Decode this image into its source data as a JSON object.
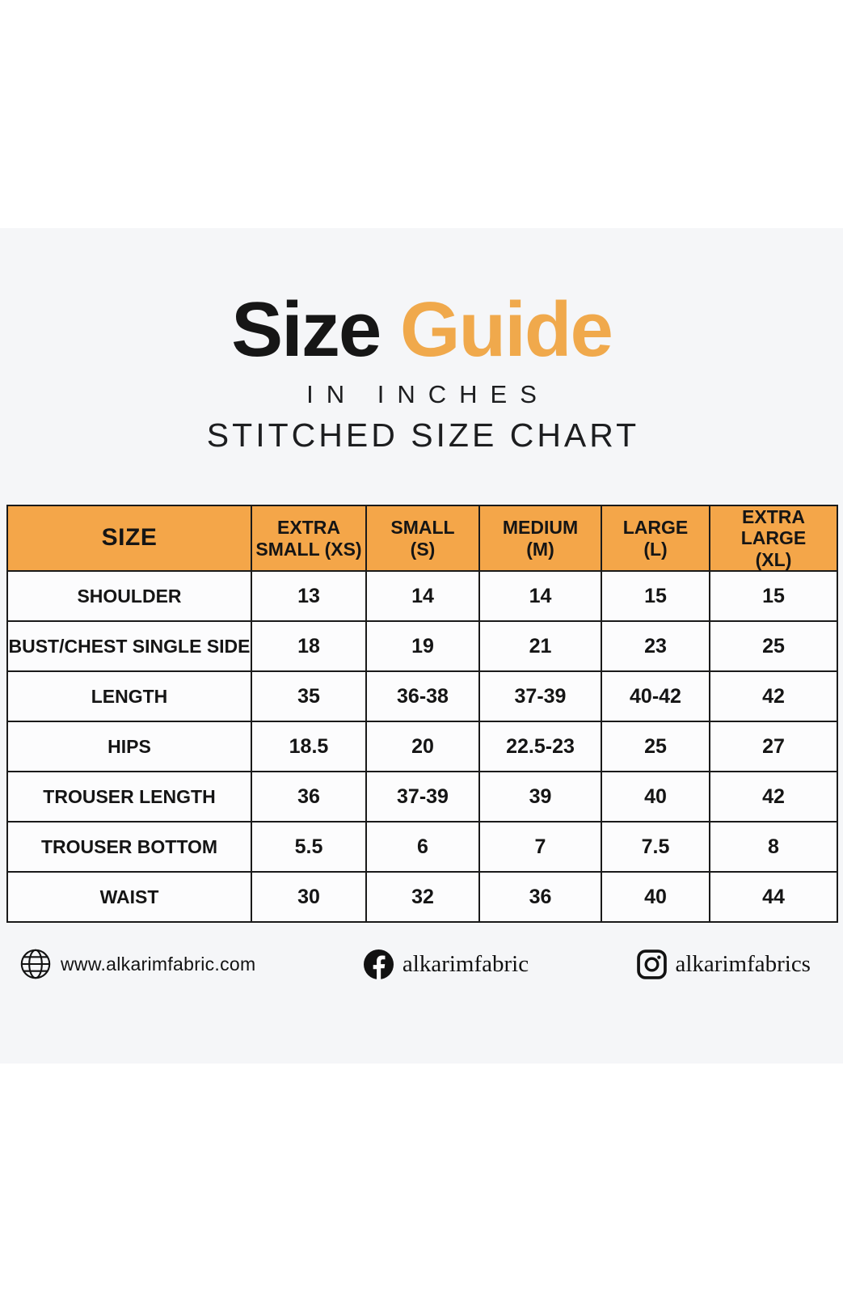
{
  "page": {
    "background": "#ffffff",
    "band_background": "#f5f6f8"
  },
  "title": {
    "word_black": "Size",
    "word_orange": "Guide",
    "orange_hex": "#F0A94C",
    "subtitle1": "IN INCHES",
    "subtitle2": "STITCHED SIZE CHART"
  },
  "chart_data": {
    "type": "table",
    "title": "Size Guide",
    "units": "inches",
    "header_color": "#F4A649",
    "columns": [
      "SIZE",
      "EXTRA\nSMALL (XS)",
      "SMALL\n(S)",
      "MEDIUM\n(M)",
      "LARGE\n(L)",
      "EXTRA LARGE\n(XL)"
    ],
    "rows": [
      {
        "label": "SHOULDER",
        "values": [
          "13",
          "14",
          "14",
          "15",
          "15"
        ]
      },
      {
        "label": "BUST/CHEST SINGLE SIDE",
        "values": [
          "18",
          "19",
          "21",
          "23",
          "25"
        ]
      },
      {
        "label": "LENGTH",
        "values": [
          "35",
          "36-38",
          "37-39",
          "40-42",
          "42"
        ]
      },
      {
        "label": "HIPS",
        "values": [
          "18.5",
          "20",
          "22.5-23",
          "25",
          "27"
        ]
      },
      {
        "label": "TROUSER LENGTH",
        "values": [
          "36",
          "37-39",
          "39",
          "40",
          "42"
        ]
      },
      {
        "label": "TROUSER BOTTOM",
        "values": [
          "5.5",
          "6",
          "7",
          "7.5",
          "8"
        ]
      },
      {
        "label": "WAIST",
        "values": [
          "30",
          "32",
          "36",
          "40",
          "44"
        ]
      }
    ]
  },
  "footer": {
    "website": {
      "icon": "globe-icon",
      "text": "www.alkarimfabric.com"
    },
    "facebook": {
      "icon": "facebook-icon",
      "text": "alkarimfabric"
    },
    "instagram": {
      "icon": "instagram-icon",
      "text": "alkarimfabrics"
    }
  }
}
